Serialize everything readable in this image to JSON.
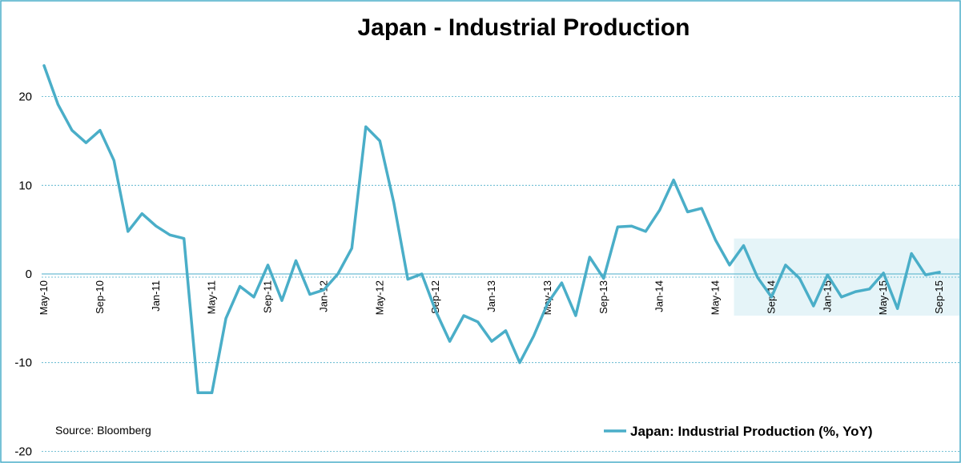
{
  "chart_data": {
    "type": "line",
    "title": "Japan - Industrial Production",
    "source": "Source: Bloomberg",
    "xlabel": "",
    "ylabel": "",
    "ylim": [
      -20,
      25
    ],
    "yticks": [
      20,
      10,
      0,
      -10,
      -20
    ],
    "grid": true,
    "legend_position": "bottom-right",
    "line_color": "#4aaec8",
    "highlight_color": "#dcf0f6",
    "highlight": {
      "x_start": "Jul-14",
      "x_end": "Oct-15",
      "y_start": -4.7,
      "y_end": 4.0
    },
    "x": [
      "May-10",
      "Jun-10",
      "Jul-10",
      "Aug-10",
      "Sep-10",
      "Oct-10",
      "Nov-10",
      "Dec-10",
      "Jan-11",
      "Feb-11",
      "Mar-11",
      "Apr-11",
      "May-11",
      "Jun-11",
      "Jul-11",
      "Aug-11",
      "Sep-11",
      "Oct-11",
      "Nov-11",
      "Dec-11",
      "Jan-12",
      "Feb-12",
      "Mar-12",
      "Apr-12",
      "May-12",
      "Jun-12",
      "Jul-12",
      "Aug-12",
      "Sep-12",
      "Oct-12",
      "Nov-12",
      "Dec-12",
      "Jan-13",
      "Feb-13",
      "Mar-13",
      "Apr-13",
      "May-13",
      "Jun-13",
      "Jul-13",
      "Aug-13",
      "Sep-13",
      "Oct-13",
      "Nov-13",
      "Dec-13",
      "Jan-14",
      "Feb-14",
      "Mar-14",
      "Apr-14",
      "May-14",
      "Jun-14",
      "Jul-14",
      "Aug-14",
      "Sep-14",
      "Oct-14",
      "Nov-14",
      "Dec-14",
      "Jan-15",
      "Feb-15",
      "Mar-15",
      "Apr-15",
      "May-15",
      "Jun-15",
      "Jul-15",
      "Aug-15",
      "Sep-15"
    ],
    "xtick_labels": [
      "May-10",
      "Sep-10",
      "Jan-11",
      "May-11",
      "Sep-11",
      "Jan-12",
      "May-12",
      "Sep-12",
      "Jan-13",
      "May-13",
      "Sep-13",
      "Jan-14",
      "May-14",
      "Sep-14",
      "Jan-15",
      "May-15",
      "Sep-15"
    ],
    "series": [
      {
        "name": "Japan: Industrial Production (%, YoY)",
        "values": [
          23.5,
          19.1,
          16.2,
          14.8,
          16.2,
          12.8,
          4.8,
          6.8,
          5.4,
          4.4,
          4.0,
          -13.4,
          -13.4,
          -5.0,
          -1.4,
          -2.6,
          1.0,
          -3.0,
          1.5,
          -2.3,
          -1.8,
          0.0,
          2.9,
          16.6,
          15.0,
          8.0,
          -0.6,
          0.0,
          -4.2,
          -7.6,
          -4.7,
          -5.4,
          -7.6,
          -6.4,
          -10.0,
          -7.0,
          -3.3,
          -1.0,
          -4.7,
          1.9,
          -0.5,
          5.3,
          5.4,
          4.8,
          7.2,
          10.6,
          7.0,
          7.4,
          3.8,
          1.0,
          3.2,
          -0.4,
          -2.6,
          1.0,
          -0.5,
          -3.6,
          -0.1,
          -2.6,
          -2.0,
          -1.7,
          0.1,
          -3.9,
          2.3,
          -0.1,
          0.2
        ]
      }
    ]
  }
}
